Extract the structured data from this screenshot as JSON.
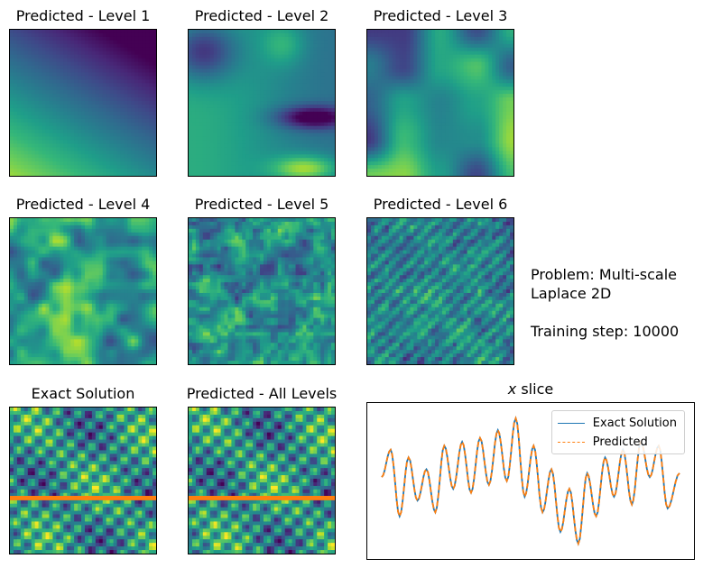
{
  "panels": [
    {
      "title": "Predicted - Level 1",
      "pattern": "level1"
    },
    {
      "title": "Predicted - Level 2",
      "pattern": "level2"
    },
    {
      "title": "Predicted - Level 3",
      "pattern": "level3"
    },
    {
      "title": "Predicted - Level 4",
      "pattern": "level4"
    },
    {
      "title": "Predicted - Level 5",
      "pattern": "level5"
    },
    {
      "title": "Predicted - Level 6",
      "pattern": "level6"
    },
    {
      "title": "Exact Solution",
      "pattern": "exact"
    },
    {
      "title": "Predicted - All Levels",
      "pattern": "exact"
    }
  ],
  "info": {
    "problem_line1": "Problem: Multi-scale",
    "problem_line2": "Laplace 2D",
    "training_step": "Training step: 10000"
  },
  "colors": {
    "exact_line": "#1f77b4",
    "predicted_line": "#ff7f0e",
    "slice_marker": "#ff7f0e"
  },
  "chart_data": {
    "type": "line",
    "title_var": "x",
    "title_rest": " slice",
    "xlabel": "",
    "ylabel": "",
    "grid": false,
    "legend_position": "top-right",
    "x": [
      0,
      0.03,
      0.06,
      0.09,
      0.12,
      0.15,
      0.18,
      0.21,
      0.24,
      0.27,
      0.3,
      0.33,
      0.36,
      0.39,
      0.42,
      0.45,
      0.48,
      0.51,
      0.54,
      0.57,
      0.6,
      0.63,
      0.66,
      0.69,
      0.72,
      0.75,
      0.78,
      0.81,
      0.84,
      0.87,
      0.9,
      0.93,
      0.96,
      1.0
    ],
    "series": [
      {
        "name": "Exact Solution",
        "style": "solid",
        "values": [
          0.1,
          0.8,
          -0.9,
          0.6,
          -0.5,
          0.3,
          -0.8,
          0.9,
          -0.2,
          1.0,
          -0.3,
          1.1,
          -0.1,
          1.3,
          0.0,
          1.6,
          -0.4,
          0.9,
          -0.8,
          0.3,
          -1.3,
          -0.2,
          -1.6,
          0.2,
          -0.9,
          0.6,
          -0.4,
          0.8,
          -0.6,
          1.0,
          0.1,
          0.9,
          -0.7,
          0.2
        ]
      },
      {
        "name": "Predicted",
        "style": "dashed",
        "values": [
          0.1,
          0.8,
          -0.9,
          0.6,
          -0.5,
          0.3,
          -0.8,
          0.9,
          -0.2,
          1.0,
          -0.3,
          1.1,
          -0.1,
          1.3,
          0.0,
          1.6,
          -0.4,
          0.9,
          -0.8,
          0.3,
          -1.3,
          -0.2,
          -1.6,
          0.2,
          -0.9,
          0.6,
          -0.4,
          0.8,
          -0.6,
          1.0,
          0.1,
          0.9,
          -0.7,
          0.2
        ]
      }
    ],
    "ylim": [
      -1.9,
      1.9
    ],
    "slice_marker_fraction": 0.62
  }
}
